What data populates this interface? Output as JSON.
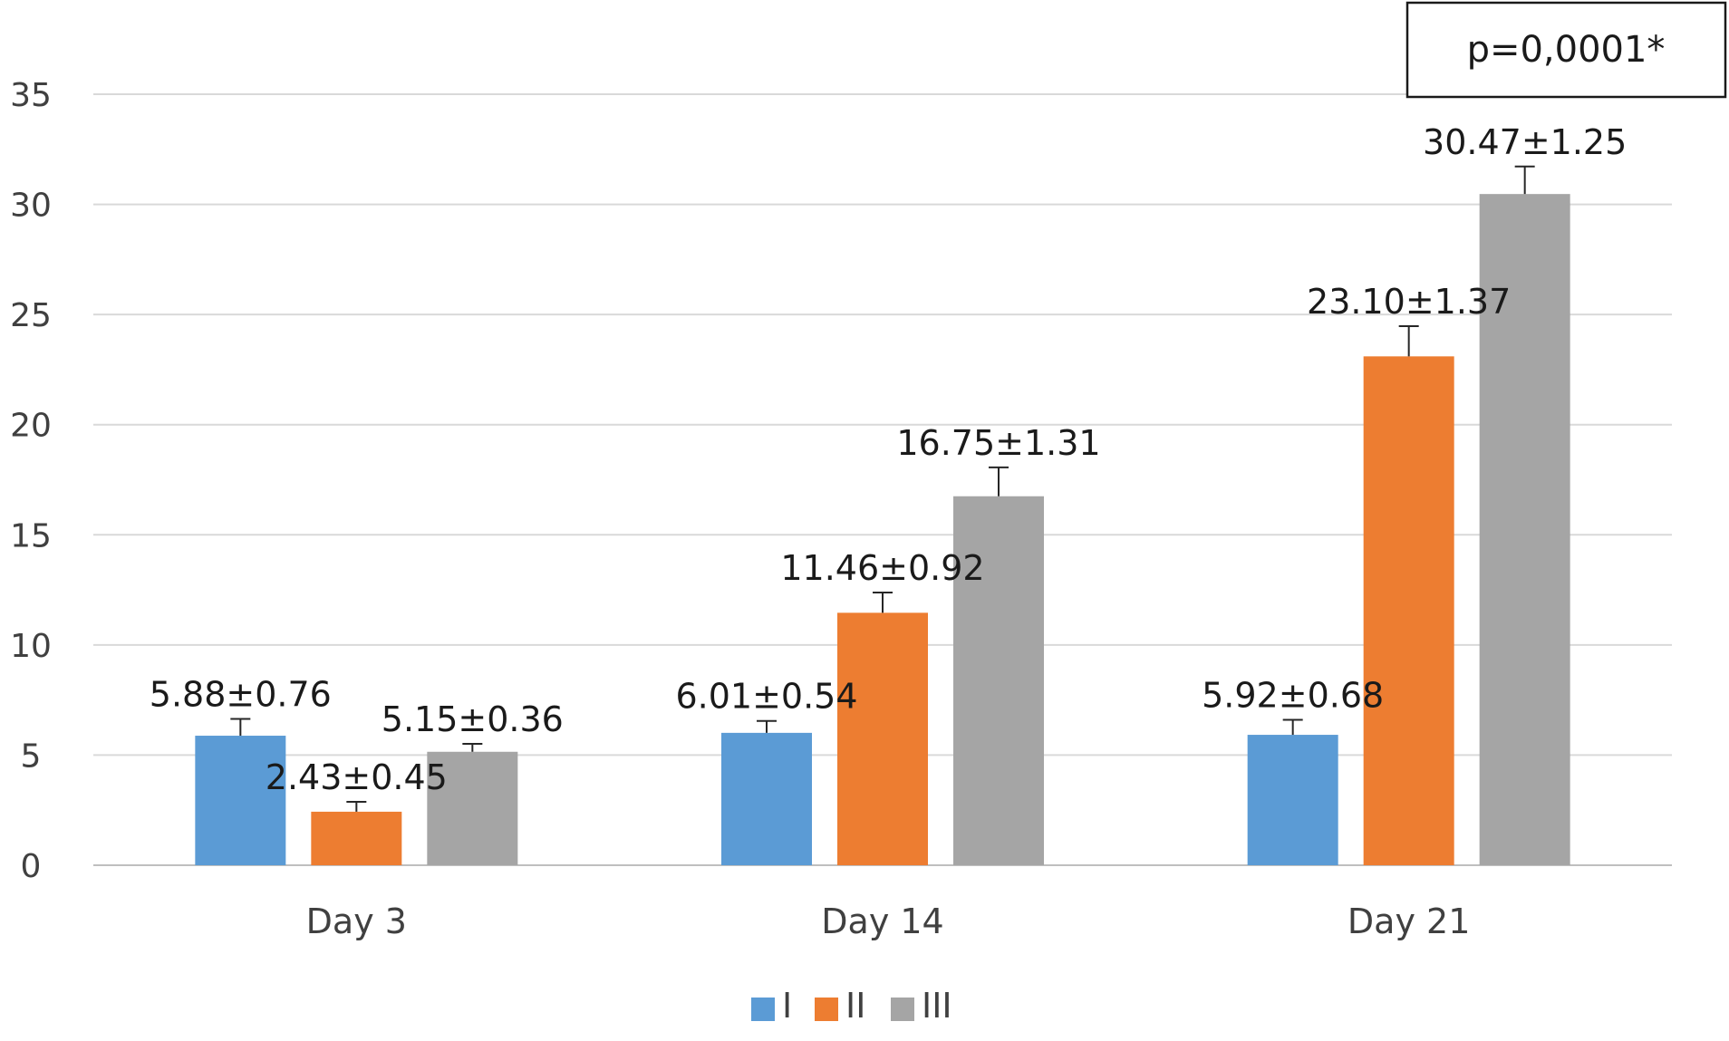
{
  "chart_data": {
    "type": "bar",
    "categories": [
      "Day 3",
      "Day 14",
      "Day 21"
    ],
    "series": [
      {
        "name": "I",
        "color": "#5b9bd5",
        "values": [
          5.88,
          6.01,
          5.92
        ],
        "errors": [
          0.76,
          0.54,
          0.68
        ],
        "labels": [
          "5.88±0.76",
          "6.01±0.54",
          "5.92±0.68"
        ]
      },
      {
        "name": "II",
        "color": "#ed7d31",
        "values": [
          2.43,
          11.46,
          23.1
        ],
        "errors": [
          0.45,
          0.92,
          1.37
        ],
        "labels": [
          "2.43±0.45",
          "11.46±0.92",
          "23.10±1.37"
        ]
      },
      {
        "name": "III",
        "color": "#a5a5a5",
        "values": [
          5.15,
          16.75,
          30.47
        ],
        "errors": [
          0.36,
          1.31,
          1.25
        ],
        "labels": [
          "5.15±0.36",
          "16.75±1.31",
          "30.47±1.25"
        ]
      }
    ],
    "ylim": [
      0,
      35
    ],
    "yticks": [
      0,
      5,
      10,
      15,
      20,
      25,
      30,
      35
    ],
    "grid": true,
    "legend_placement": "bottom-center",
    "annotation": "p=0,0001*",
    "title": "",
    "xlabel": "",
    "ylabel": ""
  }
}
